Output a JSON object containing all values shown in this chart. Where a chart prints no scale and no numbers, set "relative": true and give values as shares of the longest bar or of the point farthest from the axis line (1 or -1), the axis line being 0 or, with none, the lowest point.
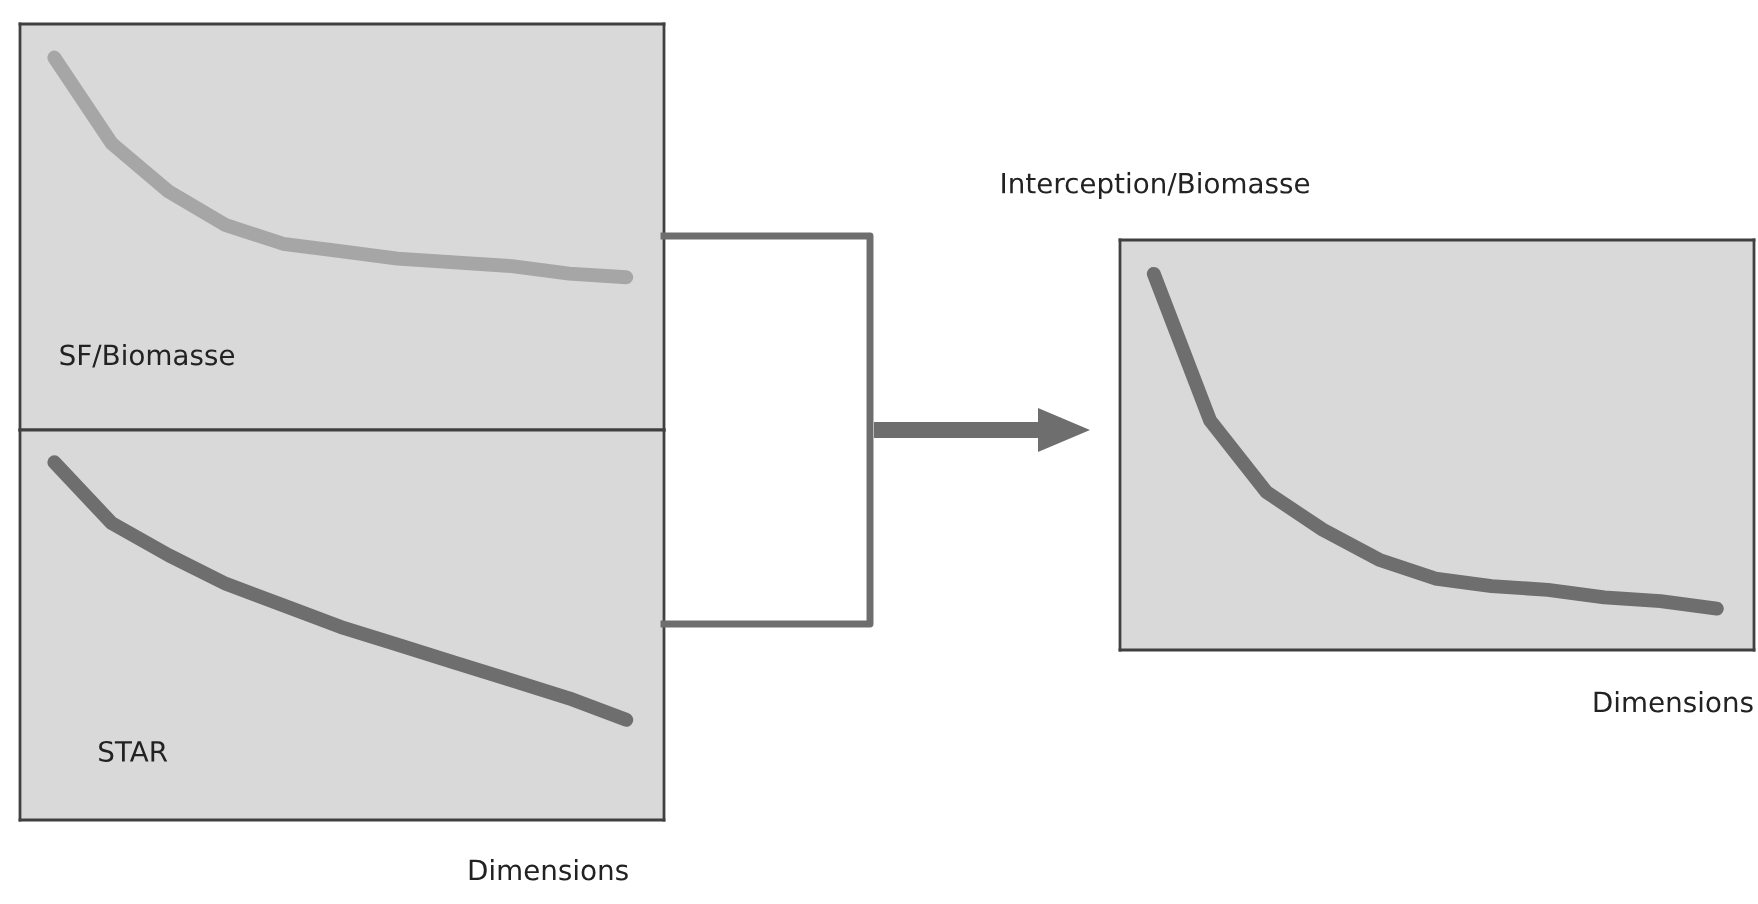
{
  "chart_data": [
    {
      "type": "line",
      "relative": true,
      "categories": [
        null,
        null,
        null,
        null,
        null,
        null,
        null,
        null,
        null,
        null,
        null
      ],
      "series": [
        {
          "color": "#a6a6a6",
          "values": [
            1,
            0.77,
            0.64,
            0.55,
            0.5,
            0.48,
            0.46,
            0.45,
            0.44,
            0.42,
            0.41
          ]
        }
      ],
      "annotations": [
        "SF/Biomasse"
      ]
    },
    {
      "type": "line",
      "relative": true,
      "categories": [
        null,
        null,
        null,
        null,
        null,
        null,
        null,
        null,
        null,
        null,
        null
      ],
      "series": [
        {
          "color": "#6e6e6e",
          "values": [
            1,
            0.83,
            0.74,
            0.66,
            0.6,
            0.54,
            0.49,
            0.44,
            0.39,
            0.34,
            0.28
          ]
        }
      ],
      "annotations": [
        "STAR"
      ],
      "xlabel": "Dimensions"
    },
    {
      "type": "line",
      "relative": true,
      "title": "Interception/Biomasse",
      "xlabel": "Dimensions",
      "categories": [
        null,
        null,
        null,
        null,
        null,
        null,
        null,
        null,
        null,
        null,
        null
      ],
      "series": [
        {
          "color": "#6e6e6e",
          "values": [
            1,
            0.61,
            0.42,
            0.32,
            0.24,
            0.19,
            0.17,
            0.16,
            0.14,
            0.13,
            0.11
          ]
        }
      ]
    }
  ]
}
